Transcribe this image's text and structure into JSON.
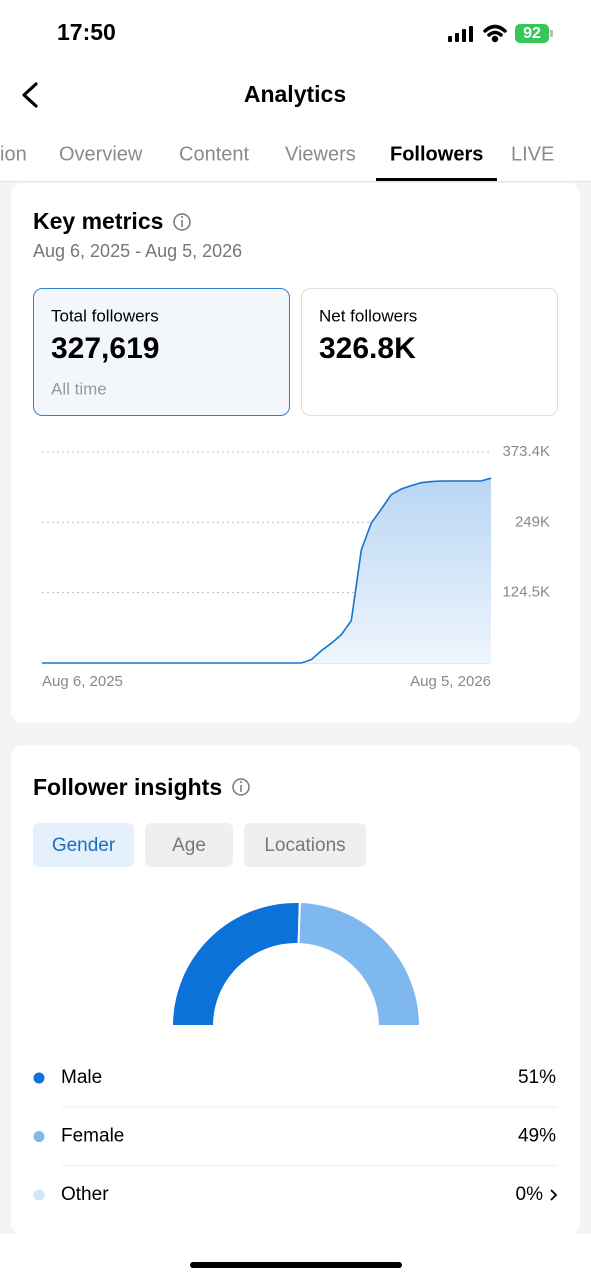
{
  "status_bar": {
    "time": "17:50",
    "battery": "92"
  },
  "header": {
    "title": "Analytics"
  },
  "tabs": [
    "ion",
    "Overview",
    "Content",
    "Viewers",
    "Followers",
    "LIVE"
  ],
  "key_metrics": {
    "title": "Key metrics",
    "date_range": "Aug 6, 2025 - Aug 5, 2026",
    "cards": [
      {
        "label": "Total followers",
        "value": "327,619",
        "note": "All time"
      },
      {
        "label": "Net followers",
        "value": "326.8K"
      }
    ]
  },
  "follower_insights": {
    "title": "Follower insights",
    "filters": [
      "Gender",
      "Age",
      "Locations"
    ]
  },
  "chart_data": [
    {
      "type": "line",
      "categories": [
        "Aug 6, 2025",
        null,
        null,
        null,
        null,
        null,
        null,
        null,
        null,
        null,
        null,
        null,
        null,
        null,
        null,
        null,
        null,
        null,
        null,
        null,
        null,
        null,
        null,
        null,
        null,
        null,
        null,
        null,
        null,
        null,
        null,
        null,
        null,
        null,
        null,
        null,
        null,
        null,
        null,
        null,
        null,
        null,
        null,
        null,
        null,
        "Aug 5, 2026"
      ],
      "series": [
        {
          "color": "#1a73c8",
          "values": [
            0,
            0,
            0,
            0,
            0,
            0,
            0,
            0,
            0,
            0,
            0,
            0,
            0,
            0,
            0,
            0,
            0,
            0,
            0,
            0,
            0,
            0,
            0,
            0,
            0,
            0,
            0,
            6000,
            22000,
            35000,
            50000,
            75000,
            200000,
            248000,
            272000,
            298000,
            308000,
            314000,
            319000,
            321000,
            322000,
            322000,
            322000,
            322000,
            322000,
            327000
          ]
        }
      ],
      "ylim": [
        0,
        373400
      ],
      "yticks": [
        {
          "value": 373400,
          "label": "373.4K"
        },
        {
          "value": 249000,
          "label": "249K"
        },
        {
          "value": 124500,
          "label": "124.5K"
        }
      ],
      "grid": true
    },
    {
      "type": "pie",
      "categories": [
        "Male",
        "Female",
        "Other"
      ],
      "values": [
        51,
        49,
        0
      ],
      "value_labels": [
        "51%",
        "49%",
        "0%"
      ],
      "colors": [
        "#0b72d9",
        "#7eb8ee",
        "#d3e6f8"
      ]
    }
  ]
}
